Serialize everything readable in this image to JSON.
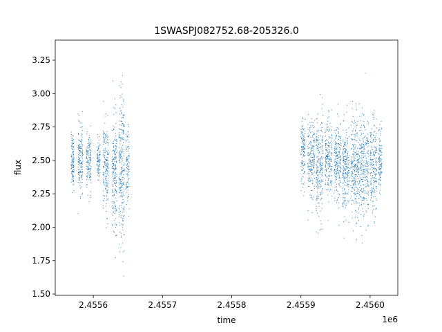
{
  "chart_data": {
    "type": "scatter",
    "title": "1SWASPJ082752.68-205326.0",
    "xlabel": "time",
    "ylabel": "flux",
    "x_offset_label": "1e6",
    "xlim": [
      2455545,
      2456040
    ],
    "ylim": [
      1.49,
      3.4
    ],
    "grid": false,
    "legend": "none",
    "marker_color": "#1f77b4",
    "x_ticks": [
      2455600,
      2455700,
      2455800,
      2455900,
      2456000
    ],
    "x_tick_labels": [
      "2.4556",
      "2.4557",
      "2.4558",
      "2.4559",
      "2.4560"
    ],
    "y_ticks": [
      1.5,
      1.75,
      2.0,
      2.25,
      2.5,
      2.75,
      3.0,
      3.25
    ],
    "y_tick_labels": [
      "1.50",
      "1.75",
      "2.00",
      "2.25",
      "2.50",
      "2.75",
      "3.00",
      "3.25"
    ],
    "series": [
      {
        "clusters": [
          {
            "x_range": [
              2455568,
              2455572
            ],
            "center": 2.5,
            "spread": 0.1,
            "n": 120
          },
          {
            "x_range": [
              2455578,
              2455585
            ],
            "center": 2.52,
            "spread": 0.12,
            "n": 160
          },
          {
            "x_range": [
              2455590,
              2455597
            ],
            "center": 2.48,
            "spread": 0.1,
            "n": 140
          },
          {
            "x_range": [
              2455605,
              2455610
            ],
            "center": 2.5,
            "spread": 0.08,
            "n": 90
          },
          {
            "x_range": [
              2455614,
              2455622
            ],
            "center": 2.45,
            "spread": 0.16,
            "n": 190
          },
          {
            "x_range": [
              2455627,
              2455634
            ],
            "center": 2.4,
            "spread": 0.22,
            "n": 190
          },
          {
            "x_range": [
              2455637,
              2455645
            ],
            "center": 2.42,
            "spread": 0.3,
            "n": 260
          },
          {
            "x_range": [
              2455647,
              2455652
            ],
            "center": 2.45,
            "spread": 0.14,
            "n": 100
          },
          {
            "x_range": [
              2455900,
              2455906
            ],
            "center": 2.55,
            "spread": 0.12,
            "n": 130
          },
          {
            "x_range": [
              2455910,
              2455920
            ],
            "center": 2.52,
            "spread": 0.14,
            "n": 200
          },
          {
            "x_range": [
              2455922,
              2455932
            ],
            "center": 2.45,
            "spread": 0.2,
            "n": 230
          },
          {
            "x_range": [
              2455935,
              2455945
            ],
            "center": 2.5,
            "spread": 0.15,
            "n": 210
          },
          {
            "x_range": [
              2455948,
              2455958
            ],
            "center": 2.48,
            "spread": 0.14,
            "n": 210
          },
          {
            "x_range": [
              2455960,
              2455970
            ],
            "center": 2.46,
            "spread": 0.16,
            "n": 230
          },
          {
            "x_range": [
              2455972,
              2455985
            ],
            "center": 2.45,
            "spread": 0.18,
            "n": 280
          },
          {
            "x_range": [
              2455986,
              2455998
            ],
            "center": 2.44,
            "spread": 0.2,
            "n": 260
          },
          {
            "x_range": [
              2456000,
              2456010
            ],
            "center": 2.45,
            "spread": 0.17,
            "n": 210
          },
          {
            "x_range": [
              2456012,
              2456017
            ],
            "center": 2.5,
            "spread": 0.13,
            "n": 110
          }
        ]
      }
    ]
  }
}
